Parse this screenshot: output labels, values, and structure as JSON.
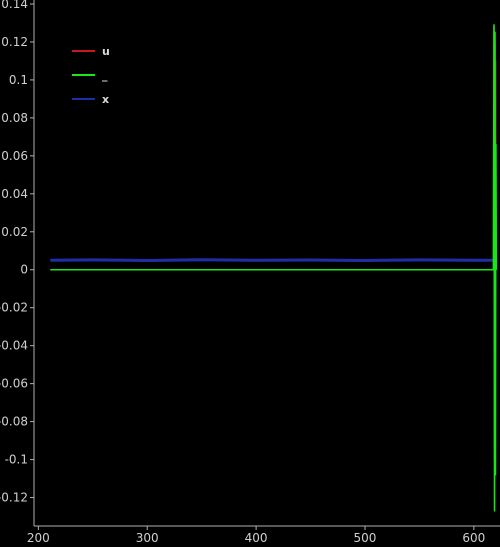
{
  "chart_data": {
    "type": "line",
    "title": "",
    "xlabel": "",
    "ylabel": "",
    "xlim": [
      196,
      624
    ],
    "ylim": [
      -0.135,
      0.14
    ],
    "x_ticks": [
      200,
      300,
      400,
      500,
      600
    ],
    "y_ticks": [
      0.14,
      0.12,
      0.1,
      0.08,
      0.06,
      0.04,
      0.02,
      0,
      -0.02,
      -0.04,
      -0.06,
      -0.08,
      -0.1,
      -0.12
    ],
    "grid": false,
    "legend_position": "top-left",
    "series": [
      {
        "name": "u",
        "color": "#c8171d",
        "x": [
          211,
          618,
          618.5,
          619,
          619.3,
          619.6,
          620,
          620.3
        ],
        "y": [
          0,
          0,
          0.128,
          -0.1,
          0.12,
          -0.06,
          0.11,
          0
        ]
      },
      {
        "name": "_",
        "color": "#19e619",
        "x": [
          211,
          300,
          400,
          500,
          600,
          618,
          618.5,
          619,
          619.4,
          619.8,
          620.2,
          620.6
        ],
        "y": [
          0,
          0,
          0,
          0,
          0,
          0,
          0.129,
          -0.127,
          0.125,
          -0.108,
          0.066,
          0
        ]
      },
      {
        "name": "x",
        "color": "#1d2fa8",
        "x": [
          211,
          250,
          300,
          350,
          400,
          450,
          500,
          550,
          600,
          620
        ],
        "y": [
          0.005,
          0.0052,
          0.0049,
          0.0053,
          0.005,
          0.0051,
          0.0049,
          0.0052,
          0.005,
          0.005
        ]
      }
    ]
  }
}
